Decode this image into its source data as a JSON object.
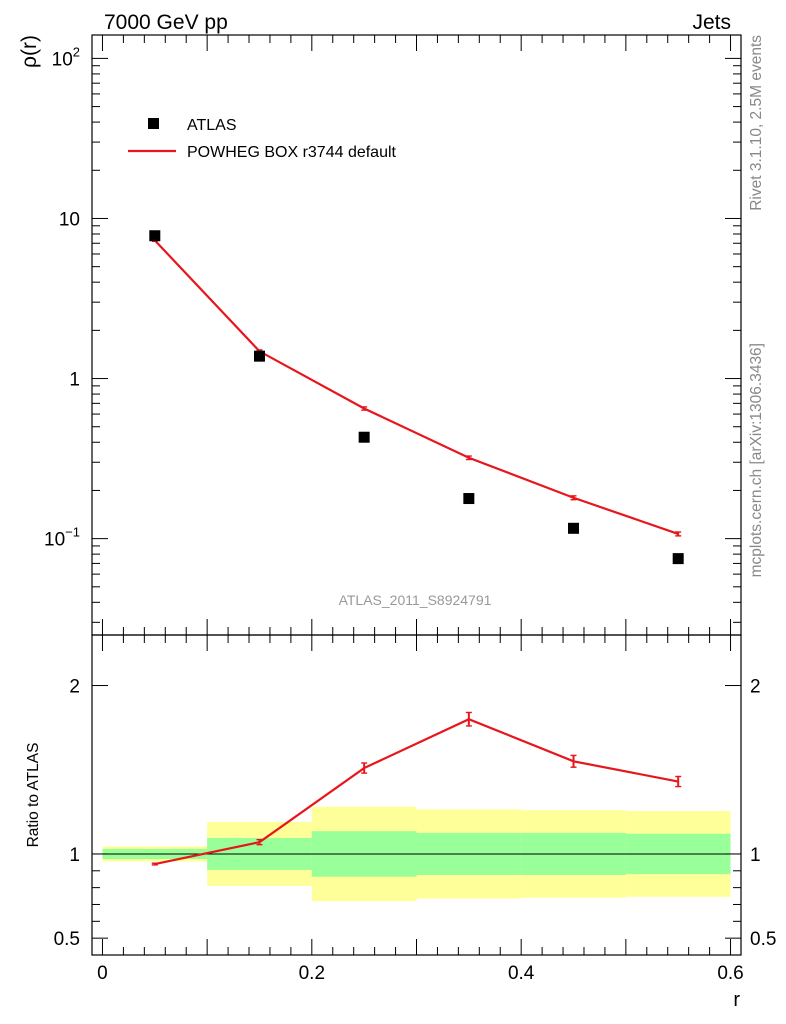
{
  "header": {
    "left": "7000 GeV pp",
    "right": "Jets"
  },
  "side_labels": {
    "rivet": "Rivet 3.1.10,  2.5M events",
    "source": "mcplots.cern.ch [arXiv:1306.3436]"
  },
  "colors": {
    "data": "#000000",
    "mc": "#e8161c",
    "band_inner": "#99ff99",
    "band_outer": "#ffff99"
  },
  "chart_data": [
    {
      "type": "scatter",
      "panel": "main",
      "title": "ATLAS_2011_S8924791",
      "ylabel": "ρ(r)",
      "yscale": "log",
      "ylim": [
        0.025,
        140
      ],
      "xlim": [
        -0.01,
        0.61
      ],
      "y_ticks": [
        {
          "value": 100,
          "label": "10",
          "sup": "2"
        },
        {
          "value": 10,
          "label": "10",
          "sup": ""
        },
        {
          "value": 1,
          "label": "1",
          "sup": ""
        },
        {
          "value": 0.1,
          "label": "10",
          "sup": "−1"
        }
      ],
      "legend": {
        "position": "top-left",
        "entries": [
          "ATLAS",
          "POWHEG BOX r3744 default"
        ]
      },
      "series": [
        {
          "name": "ATLAS",
          "style": "markers",
          "x": [
            0.05,
            0.15,
            0.25,
            0.35,
            0.45,
            0.55
          ],
          "values": [
            7.8,
            1.38,
            0.43,
            0.178,
            0.116,
            0.075
          ]
        },
        {
          "name": "POWHEG BOX r3744 default",
          "style": "line",
          "x": [
            0.05,
            0.15,
            0.25,
            0.35,
            0.45,
            0.55
          ],
          "values": [
            7.3,
            1.48,
            0.65,
            0.32,
            0.18,
            0.107
          ],
          "errors": [
            0.1,
            0.03,
            0.015,
            0.008,
            0.005,
            0.003
          ]
        }
      ]
    },
    {
      "type": "line",
      "panel": "ratio",
      "ylabel": "Ratio to ATLAS",
      "xlabel": "r",
      "ylim": [
        0.4,
        2.3
      ],
      "xlim": [
        -0.01,
        0.61
      ],
      "x_ticks": [
        {
          "value": 0,
          "label": "0"
        },
        {
          "value": 0.2,
          "label": "0.2"
        },
        {
          "value": 0.4,
          "label": "0.4"
        },
        {
          "value": 0.6,
          "label": "0.6"
        }
      ],
      "y_ticks": [
        {
          "value": 2,
          "label": "2"
        },
        {
          "value": 1,
          "label": "1"
        },
        {
          "value": 0.5,
          "label": "0.5"
        }
      ],
      "bins": [
        {
          "lo": 0.0,
          "hi": 0.1,
          "inner": [
            0.97,
            1.03
          ],
          "outer": [
            0.955,
            1.045
          ]
        },
        {
          "lo": 0.1,
          "hi": 0.2,
          "inner": [
            0.905,
            1.095
          ],
          "outer": [
            0.81,
            1.19
          ]
        },
        {
          "lo": 0.2,
          "hi": 0.3,
          "inner": [
            0.865,
            1.135
          ],
          "outer": [
            0.72,
            1.28
          ]
        },
        {
          "lo": 0.3,
          "hi": 0.4,
          "inner": [
            0.875,
            1.125
          ],
          "outer": [
            0.735,
            1.265
          ]
        },
        {
          "lo": 0.4,
          "hi": 0.5,
          "inner": [
            0.875,
            1.125
          ],
          "outer": [
            0.74,
            1.26
          ]
        },
        {
          "lo": 0.5,
          "hi": 0.6,
          "inner": [
            0.88,
            1.12
          ],
          "outer": [
            0.745,
            1.255
          ]
        }
      ],
      "series": [
        {
          "name": "POWHEG BOX r3744 default / ATLAS",
          "x": [
            0.05,
            0.15,
            0.25,
            0.35,
            0.45,
            0.55
          ],
          "values": [
            0.94,
            1.07,
            1.51,
            1.8,
            1.55,
            1.43
          ],
          "errors": [
            0.005,
            0.015,
            0.03,
            0.04,
            0.035,
            0.03
          ]
        }
      ]
    }
  ]
}
